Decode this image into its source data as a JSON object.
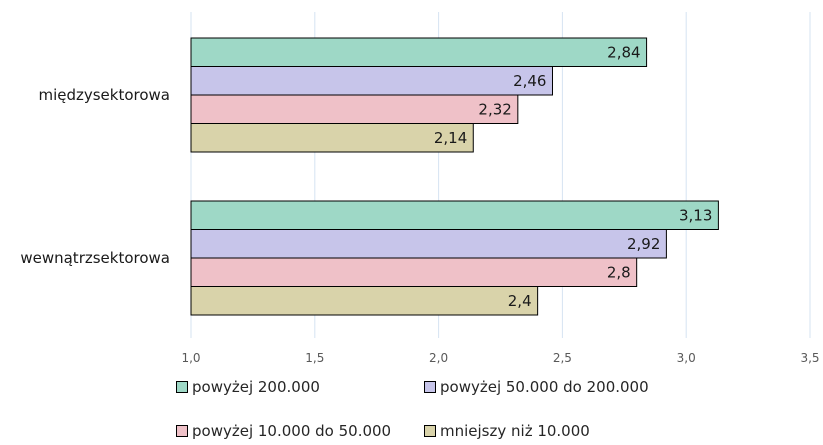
{
  "chart_data": {
    "type": "bar",
    "orientation": "horizontal",
    "title": "",
    "xlabel": "",
    "ylabel": "",
    "xlim": [
      1.0,
      3.5
    ],
    "x_ticks": [
      "1,0",
      "1,5",
      "2,0",
      "2,5",
      "3,0",
      "3,5"
    ],
    "grid": "vertical",
    "legend_position": "bottom",
    "categories": [
      "międzysektorowa",
      "wewnątrzsektorowa"
    ],
    "series": [
      {
        "name": "powyżej 200.000",
        "color": "#9ed8c6",
        "values": [
          2.84,
          3.13
        ],
        "labels": [
          "2,84",
          "3,13"
        ]
      },
      {
        "name": "powyżej 50.000 do 200.000",
        "color": "#c7c5ea",
        "values": [
          2.46,
          2.92
        ],
        "labels": [
          "2,46",
          "2,92"
        ]
      },
      {
        "name": "powyżej 10.000 do 50.000",
        "color": "#efc1c8",
        "values": [
          2.32,
          2.8
        ],
        "labels": [
          "2,32",
          "2,8"
        ]
      },
      {
        "name": "mniejszy niż 10.000",
        "color": "#d9d3aa",
        "values": [
          2.14,
          2.4
        ],
        "labels": [
          "2,14",
          "2,4"
        ]
      }
    ]
  }
}
